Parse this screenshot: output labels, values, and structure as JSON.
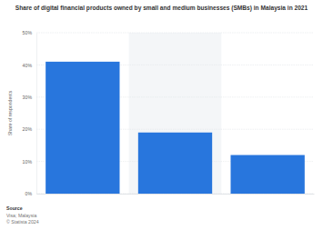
{
  "chart_data": {
    "type": "bar",
    "title": "Share of digital financial products owned by small and medium businesses (SMBs) in Malaysia in 2021",
    "y_label": "Share of respondents",
    "categories": [
      null,
      null,
      null
    ],
    "values": [
      41,
      19,
      12
    ],
    "color": "#2876dd",
    "ylim": [
      0,
      50
    ],
    "yticks": [
      {
        "value": 0,
        "label": "0%"
      },
      {
        "value": 10,
        "label": "10%"
      },
      {
        "value": 20,
        "label": "20%"
      },
      {
        "value": 30,
        "label": "30%"
      },
      {
        "value": 40,
        "label": "40%"
      },
      {
        "value": 50,
        "label": "50%"
      }
    ],
    "grid": true,
    "annotations": [
      "Source",
      "Visa; Malaysia",
      "© Statista 2024"
    ]
  }
}
